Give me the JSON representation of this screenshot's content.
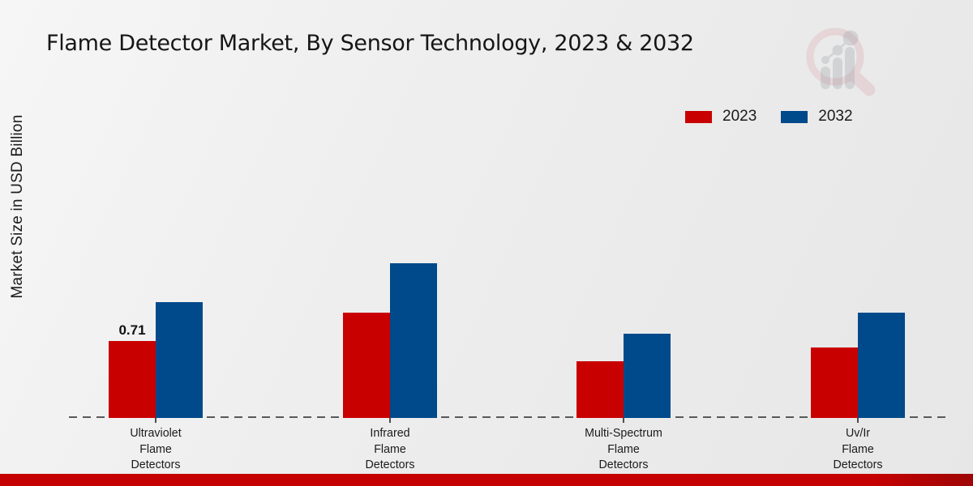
{
  "header": {
    "title": "Flame Detector Market, By Sensor Technology, 2023 & 2032"
  },
  "axis": {
    "ylabel": "Market Size in USD Billion"
  },
  "brand": {
    "watermark_icon": "magnifier-growth-chart-logo"
  },
  "colors": {
    "series_2023": "#c80000",
    "series_2032": "#00498a",
    "footer_accent": "#c40000",
    "baseline_gray": "#595959",
    "background": "#ededed"
  },
  "chart_data": {
    "type": "bar",
    "title": "Flame Detector Market, By Sensor Technology, 2023 & 2032",
    "ylabel": "Market Size in USD Billion",
    "xlabel": "",
    "categories": [
      "Ultraviolet\nFlame\nDetectors",
      "Infrared\nFlame\nDetectors",
      "Multi-Spectrum\nFlame\nDetectors",
      "Uv/Ir\nFlame\nDetectors"
    ],
    "series": [
      {
        "name": "2023",
        "color": "#c80000",
        "values": [
          0.71,
          0.97,
          0.52,
          0.65
        ],
        "value_labels": [
          "0.71",
          null,
          null,
          null
        ]
      },
      {
        "name": "2032",
        "color": "#00498a",
        "values": [
          1.07,
          1.43,
          0.78,
          0.97
        ],
        "value_labels": [
          null,
          null,
          null,
          null
        ]
      }
    ],
    "ylim": [
      0,
      1.6
    ],
    "grid": false,
    "y_axis_ticks_visible": false,
    "legend_position": "top-right",
    "baseline_style": "dashed"
  }
}
